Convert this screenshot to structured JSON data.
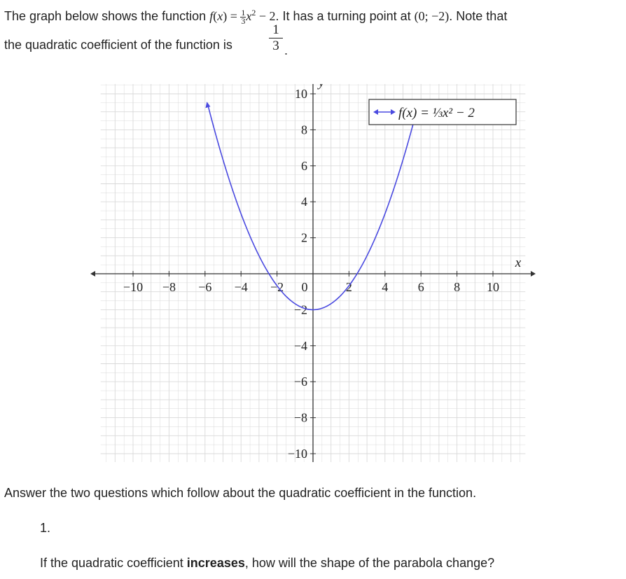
{
  "intro": {
    "part1": "The graph below shows the function ",
    "func_name": "f",
    "func_open": "(",
    "func_x": "x",
    "func_close": ") = ",
    "frac_num": "1",
    "frac_den": "3",
    "x_sq": "x",
    "sq": "2",
    "minus_two": " − 2",
    "part2": ". It has a turning point at ",
    "turning_point": "(0; −2)",
    "part3": ". Note that",
    "line2_text": "the quadratic coefficient of the function is ",
    "coef_num": "1",
    "coef_den": "3",
    "period": "."
  },
  "chart_data": {
    "type": "line",
    "function": "f(x) = (1/3)x^2 - 2",
    "series": [
      {
        "name": "f(x) = ⅓x² − 2",
        "color": "#4a4ae0",
        "x": [
          -5.82,
          -5,
          -4,
          -3,
          -2.45,
          -2,
          -1,
          0,
          1,
          2,
          2.45,
          3,
          4,
          5,
          5.82
        ],
        "y": [
          9.29,
          6.33,
          3.33,
          1,
          0,
          -0.67,
          -1.67,
          -2,
          -1.67,
          -0.67,
          0,
          1,
          3.33,
          6.33,
          9.29
        ]
      }
    ],
    "xlim": [
      -12,
      12
    ],
    "ylim": [
      -11,
      11
    ],
    "xlabel": "x",
    "ylabel": "y",
    "x_ticks": [
      "−10",
      "−8",
      "−6",
      "−4",
      "−2",
      "0",
      "2",
      "4",
      "6",
      "8",
      "10"
    ],
    "x_tick_values": [
      -10,
      -8,
      -6,
      -4,
      -2,
      0,
      2,
      4,
      6,
      8,
      10
    ],
    "y_ticks": [
      "10",
      "8",
      "6",
      "4",
      "2",
      "−2",
      "−4",
      "−6",
      "−8",
      "−10"
    ],
    "y_tick_values": [
      10,
      8,
      6,
      4,
      2,
      -2,
      -4,
      -6,
      -8,
      -10
    ],
    "grid": true,
    "legend_position": "top-right",
    "legend_label": "f(x) = ⅓x² − 2",
    "colors": {
      "curve": "#4a4ae0",
      "grid": "#d9d9d9",
      "axis": "#333333"
    }
  },
  "question_intro": "Answer the two questions which follow about the quadratic coefficient in the function.",
  "question_number": "1.",
  "question": {
    "before": "If the quadratic coefficient ",
    "bold": "increases",
    "after": ", how will the shape of the parabola change?"
  }
}
